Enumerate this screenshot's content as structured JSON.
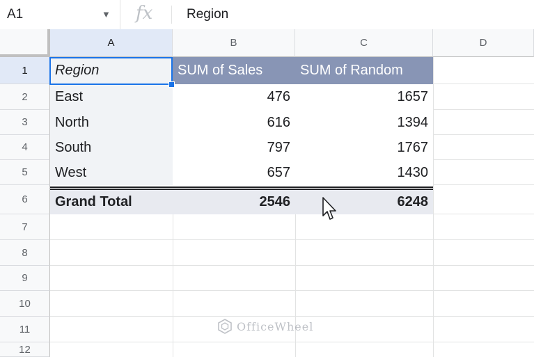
{
  "formula_bar": {
    "name_box": "A1",
    "fx_label": "fx",
    "formula": "Region"
  },
  "columns": [
    "A",
    "B",
    "C",
    "D"
  ],
  "rows": [
    "1",
    "2",
    "3",
    "4",
    "5",
    "6",
    "7",
    "8",
    "9",
    "10",
    "11",
    "12"
  ],
  "pivot": {
    "headers": [
      "Region",
      "SUM of Sales",
      "SUM of Random"
    ],
    "body": [
      {
        "region": "East",
        "sales": "476",
        "random": "1657"
      },
      {
        "region": "North",
        "sales": "616",
        "random": "1394"
      },
      {
        "region": "South",
        "sales": "797",
        "random": "1767"
      },
      {
        "region": "West",
        "sales": "657",
        "random": "1430"
      }
    ],
    "total": {
      "label": "Grand Total",
      "sales": "2546",
      "random": "6248"
    }
  },
  "watermark": "OfficeWheel",
  "colors": {
    "header_fill": "#8895b5",
    "selection": "#1a73e8",
    "total_fill": "#e8eaf0"
  }
}
